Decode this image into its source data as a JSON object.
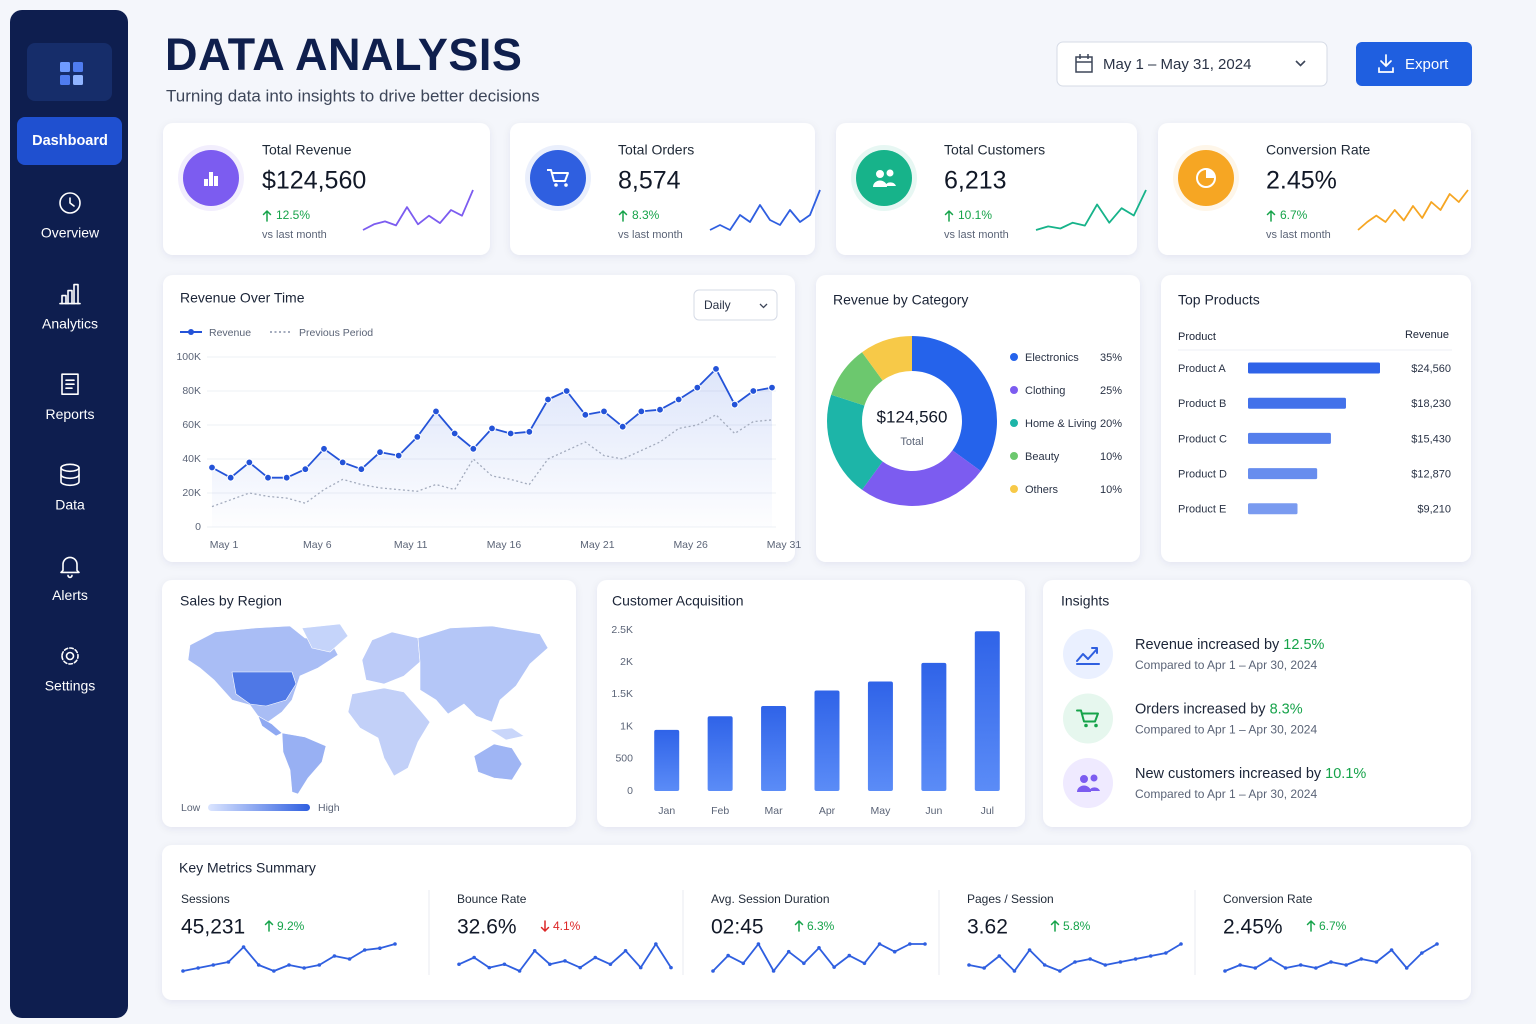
{
  "sidebar": {
    "items": [
      "Dashboard",
      "Overview",
      "Analytics",
      "Reports",
      "Data",
      "Alerts",
      "Settings"
    ],
    "active": 0
  },
  "header": {
    "title": "DATA ANALYSIS",
    "subtitle": "Turning data into insights to drive better decisions",
    "date_range": "May 1 – May 31, 2024",
    "export": "Export"
  },
  "kpis": [
    {
      "label": "Total Revenue",
      "value": "$124,560",
      "change": "12.5%",
      "direction": "up",
      "note": "vs last month",
      "color": "#7c5cf0",
      "spark": [
        2,
        3,
        3.5,
        2.8,
        6,
        3,
        4.5,
        3.2,
        5.5,
        4.5,
        9
      ]
    },
    {
      "label": "Total Orders",
      "value": "8,574",
      "change": "8.3%",
      "direction": "up",
      "note": "vs last month",
      "color": "#2f5fe0",
      "spark": [
        4,
        4.5,
        4,
        5.5,
        4.8,
        6.5,
        5,
        4.5,
        6,
        4.8,
        5.5,
        8
      ]
    },
    {
      "label": "Total Customers",
      "value": "6,213",
      "change": "10.1%",
      "direction": "up",
      "note": "vs last month",
      "color": "#17b38a",
      "spark": [
        2,
        2.5,
        2.2,
        3,
        2.6,
        5.5,
        3,
        5,
        4,
        7.5
      ]
    },
    {
      "label": "Conversion Rate",
      "value": "2.45%",
      "change": "6.7%",
      "direction": "up",
      "note": "vs last month",
      "color": "#f6a623",
      "spark": [
        2,
        3,
        3.8,
        3,
        4.5,
        3.2,
        5,
        3.5,
        5.5,
        4.5,
        6.5,
        5.5,
        7
      ]
    }
  ],
  "chart_data": [
    {
      "type": "line",
      "title": "Revenue Over Time",
      "control": "Daily",
      "categories": [
        "May 1",
        null,
        null,
        null,
        null,
        "May 6",
        null,
        null,
        null,
        null,
        "May 11",
        null,
        null,
        null,
        null,
        "May 16",
        null,
        null,
        null,
        null,
        "May 21",
        null,
        null,
        null,
        null,
        "May 26",
        null,
        null,
        null,
        null,
        "May 31"
      ],
      "series": [
        {
          "name": "Revenue",
          "color": "#2453d8",
          "style": "solid",
          "values": [
            35000,
            29000,
            38000,
            29000,
            29000,
            34000,
            46000,
            38000,
            34000,
            44000,
            42000,
            53000,
            68000,
            55000,
            46000,
            58000,
            55000,
            56000,
            75000,
            80000,
            66000,
            68000,
            59000,
            68000,
            69000,
            75000,
            82000,
            93000,
            72000,
            80000,
            82000
          ]
        },
        {
          "name": "Previous Period",
          "color": "#a3abbd",
          "style": "dashed",
          "values": [
            12000,
            16000,
            20000,
            18000,
            17000,
            14000,
            22000,
            28000,
            25000,
            23000,
            22000,
            21000,
            25000,
            22000,
            40000,
            30000,
            28000,
            25000,
            40000,
            45000,
            50000,
            42000,
            40000,
            45000,
            50000,
            58000,
            60000,
            66000,
            55000,
            62000,
            63000
          ]
        }
      ],
      "ylim": [
        0,
        100000
      ],
      "yticks": [
        0,
        {
          "value": 20000,
          "label": "20K"
        },
        {
          "value": 40000,
          "label": "40K"
        },
        {
          "value": 60000,
          "label": "60K"
        },
        {
          "value": 80000,
          "label": "80K"
        },
        {
          "value": 100000,
          "label": "100K"
        }
      ],
      "grid": true
    },
    {
      "type": "pie",
      "title": "Revenue by Category",
      "center_value": "$124,560",
      "center_label": "Total",
      "categories": [
        "Electronics",
        "Clothing",
        "Home & Living",
        "Beauty",
        "Others"
      ],
      "values": [
        35,
        25,
        20,
        10,
        10
      ],
      "value_labels": [
        "35%",
        "25%",
        "20%",
        "10%",
        "10%"
      ],
      "colors": [
        "#2563eb",
        "#7c5cf0",
        "#1db5a8",
        "#6cc86e",
        "#f7c948"
      ]
    },
    {
      "type": "hbar",
      "title": "Top Products",
      "columns": [
        "Product",
        "Revenue"
      ],
      "categories": [
        "Product A",
        "Product B",
        "Product C",
        "Product D",
        "Product E"
      ],
      "values": [
        24560,
        18230,
        15430,
        12870,
        9210
      ],
      "value_labels": [
        "$24,560",
        "$18,230",
        "$15,430",
        "$12,870",
        "$9,210"
      ],
      "color": "#2f63e8"
    },
    {
      "type": "bar",
      "title": "Customer Acquisition",
      "categories": [
        "Jan",
        "Feb",
        "Mar",
        "Apr",
        "May",
        "Jun",
        "Jul"
      ],
      "values": [
        950,
        1160,
        1320,
        1560,
        1700,
        1990,
        2480
      ],
      "color": "#2f63e8",
      "ylim": [
        0,
        2500
      ],
      "yticks": [
        0,
        500,
        {
          "value": 1000,
          "label": "1K"
        },
        {
          "value": 1500,
          "label": "1.5K"
        },
        {
          "value": 2000,
          "label": "2K"
        },
        {
          "value": 2500,
          "label": "2.5K"
        }
      ],
      "grid": false
    }
  ],
  "sales_by_region": {
    "title": "Sales by Region",
    "legend": [
      "Low",
      "High"
    ]
  },
  "insights": {
    "title": "Insights",
    "items": [
      {
        "text": "Revenue increased by",
        "value": "12.5%",
        "note": "Compared to Apr 1 – Apr 30, 2024"
      },
      {
        "text": "Orders increased by",
        "value": "8.3%",
        "note": "Compared to Apr 1 – Apr 30, 2024"
      },
      {
        "text": "New customers increased by",
        "value": "10.1%",
        "note": "Compared to Apr 1 – Apr 30, 2024"
      }
    ]
  },
  "key_metrics": {
    "title": "Key Metrics Summary",
    "color": "#2f5fe0",
    "items": [
      {
        "label": "Sessions",
        "value": "45,231",
        "change": "9.2%",
        "direction": "up",
        "spark": [
          3,
          3.5,
          4,
          4.5,
          7,
          4,
          3,
          4,
          3.5,
          4,
          5.5,
          5,
          6.5,
          6.8,
          7.5
        ]
      },
      {
        "label": "Bounce Rate",
        "value": "32.6%",
        "change": "4.1%",
        "direction": "down",
        "spark": [
          4,
          5,
          3.5,
          4,
          3,
          6,
          4,
          4.5,
          3.5,
          5,
          4,
          6,
          3.5,
          7,
          3.5
        ]
      },
      {
        "label": "Avg. Session Duration",
        "value": "02:45",
        "change": "6.3%",
        "direction": "up",
        "spark": [
          3,
          5,
          4,
          6.5,
          3,
          5.5,
          4,
          6,
          3.5,
          5,
          4,
          6.5,
          5.5,
          6.5,
          6.5
        ]
      },
      {
        "label": "Pages / Session",
        "value": "3.62",
        "change": "5.8%",
        "direction": "up",
        "spark": [
          4,
          3.5,
          5.5,
          3,
          6.5,
          4,
          3,
          4.5,
          5,
          4,
          4.5,
          5,
          5.5,
          6,
          7.5
        ]
      },
      {
        "label": "Conversion Rate",
        "value": "2.45%",
        "change": "6.7%",
        "direction": "up",
        "spark": [
          3,
          4,
          3.5,
          5,
          3.5,
          4,
          3.5,
          4.5,
          4,
          5,
          4.5,
          6.5,
          3.5,
          6,
          7.5
        ]
      }
    ]
  }
}
